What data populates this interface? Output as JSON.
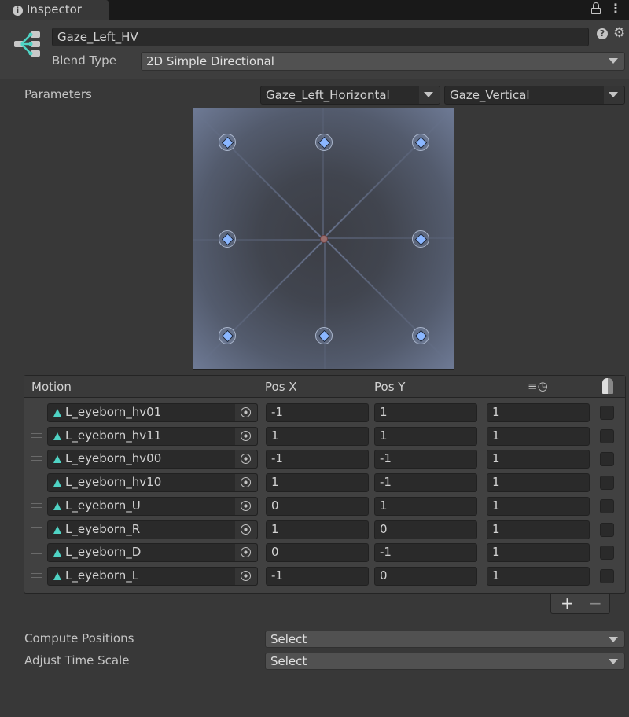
{
  "tab": {
    "title": "Inspector",
    "icon": "info-icon"
  },
  "header": {
    "name": "Gaze_Left_HV",
    "blend_type_label": "Blend Type",
    "blend_type": "2D Simple Directional",
    "icons": [
      "blend-tree-icon",
      "help-icon",
      "settings-icon",
      "lock-icon",
      "kebab-menu-icon"
    ]
  },
  "parameters": {
    "label": "Parameters",
    "x_param": "Gaze_Left_Horizontal",
    "y_param": "Gaze_Vertical"
  },
  "table": {
    "headers": {
      "motion": "Motion",
      "pos_x": "Pos X",
      "pos_y": "Pos Y",
      "speed_icon": "time-speed-icon",
      "mirror_icon": "mirror-icon"
    },
    "rows": [
      {
        "motion": "L_eyeborn_hv01",
        "x": "-1",
        "y": "1",
        "speed": "1",
        "mirror": false
      },
      {
        "motion": "L_eyeborn_hv11",
        "x": "1",
        "y": "1",
        "speed": "1",
        "mirror": false
      },
      {
        "motion": "L_eyeborn_hv00",
        "x": "-1",
        "y": "-1",
        "speed": "1",
        "mirror": false
      },
      {
        "motion": "L_eyeborn_hv10",
        "x": "1",
        "y": "-1",
        "speed": "1",
        "mirror": false
      },
      {
        "motion": "L_eyeborn_U",
        "x": "0",
        "y": "1",
        "speed": "1",
        "mirror": false
      },
      {
        "motion": "L_eyeborn_R",
        "x": "1",
        "y": "0",
        "speed": "1",
        "mirror": false
      },
      {
        "motion": "L_eyeborn_D",
        "x": "0",
        "y": "-1",
        "speed": "1",
        "mirror": false
      },
      {
        "motion": "L_eyeborn_L",
        "x": "-1",
        "y": "0",
        "speed": "1",
        "mirror": false
      }
    ],
    "add_label": "+",
    "remove_label": "−"
  },
  "compute_positions": {
    "label": "Compute Positions",
    "value": "Select"
  },
  "adjust_time_scale": {
    "label": "Adjust Time Scale",
    "value": "Select"
  },
  "current_position": {
    "x": 0,
    "y": 0
  },
  "colors": {
    "motion_icon": "#4fd3c4",
    "point": "#8ab6ff",
    "current": "#9a6e6e"
  }
}
